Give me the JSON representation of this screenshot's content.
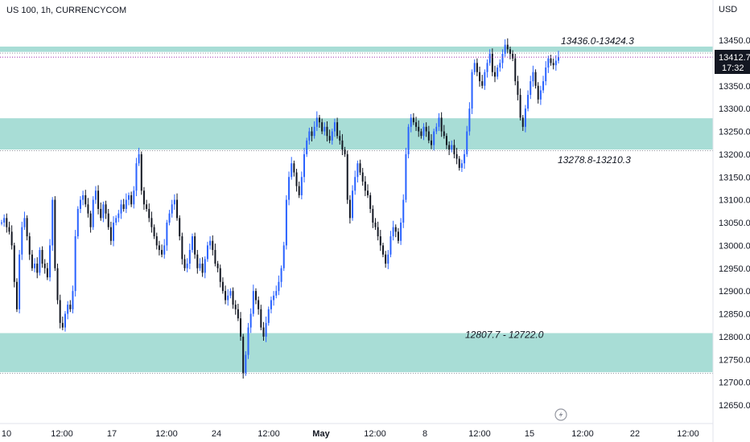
{
  "header": {
    "symbol_title": "US 100, 1h, CURRENCYCOM",
    "currency": "USD"
  },
  "price_tag": {
    "price": "13412.7",
    "countdown": "17:32"
  },
  "icons": {
    "replay": "lightning-icon"
  },
  "colors": {
    "zone_fill": "#a8ddd6",
    "candle_up": "#2962ff",
    "candle_down": "#131722",
    "price_tag_bg": "#131722",
    "dotted_line": "#9c27b0"
  },
  "chart_data": {
    "type": "candlestick",
    "title": "US 100, 1h, CURRENCYCOM",
    "y_unit": "USD",
    "ylim": [
      12620,
      13520
    ],
    "y_ticks": [
      12650,
      12700,
      12750,
      12800,
      12850,
      12900,
      12950,
      13000,
      13050,
      13100,
      13150,
      13200,
      13250,
      13300,
      13350,
      13400,
      13450
    ],
    "y_tick_labels": [
      "12650.0",
      "12700.0",
      "12750.0",
      "12800.0",
      "12850.0",
      "12900.0",
      "12950.0",
      "13000.0",
      "13050.0",
      "13100.0",
      "13150.0",
      "13200.0",
      "13250.0",
      "13300.0",
      "13350.0",
      "13400.0",
      "13450.0"
    ],
    "x_tick_labels": [
      "10",
      "12:00",
      "17",
      "12:00",
      "24",
      "12:00",
      "May",
      "12:00",
      "8",
      "12:00",
      "15",
      "12:00",
      "22",
      "12:00"
    ],
    "zones": [
      {
        "label": "13436.0-13424.3",
        "high": 13436.0,
        "low": 13424.3
      },
      {
        "label": "13278.8-13210.3",
        "high": 13278.8,
        "low": 13210.3
      },
      {
        "label": "12807.7 - 12722.0",
        "high": 12807.7,
        "low": 12722.0
      }
    ],
    "last_price": 13412.7,
    "series": [
      {
        "values": [
          13050,
          13060,
          13040,
          13030,
          13000,
          12920,
          12860,
          12980,
          13040,
          13060,
          13020,
          12980,
          12950,
          12960,
          12940,
          12990,
          12960,
          12950,
          12930,
          13000,
          13100,
          12950,
          12880,
          12830,
          12820,
          12850,
          12870,
          12860,
          12900,
          13020,
          13080,
          13100,
          13110,
          13090,
          13070,
          13040,
          13100,
          13120,
          13080,
          13060,
          13090,
          13070,
          13040,
          13010,
          13050,
          13060,
          13070,
          13090,
          13080,
          13100,
          13110,
          13090,
          13120,
          13180,
          13200,
          13120,
          13090,
          13080,
          13060,
          13040,
          13020,
          13000,
          12990,
          12980,
          13000,
          13050,
          13070,
          13090,
          13100,
          13060,
          13020,
          12970,
          12950,
          12960,
          12990,
          13020,
          12980,
          12950,
          12960,
          12940,
          12970,
          13000,
          13010,
          12990,
          12960,
          12950,
          12920,
          12900,
          12880,
          12890,
          12900,
          12870,
          12860,
          12840,
          12800,
          12720,
          12760,
          12820,
          12850,
          12900,
          12880,
          12860,
          12820,
          12800,
          12830,
          12860,
          12880,
          12890,
          12900,
          12920,
          12950,
          13000,
          13100,
          13150,
          13180,
          13160,
          13130,
          13110,
          13150,
          13200,
          13230,
          13250,
          13240,
          13260,
          13280,
          13270,
          13250,
          13260,
          13240,
          13230,
          13250,
          13270,
          13240,
          13230,
          13210,
          13200,
          13100,
          13060,
          13120,
          13150,
          13180,
          13160,
          13140,
          13120,
          13110,
          13080,
          13050,
          13040,
          13020,
          13000,
          12980,
          12960,
          12980,
          13020,
          13040,
          13030,
          13010,
          13050,
          13100,
          13200,
          13260,
          13280,
          13270,
          13260,
          13250,
          13240,
          13260,
          13250,
          13230,
          13220,
          13250,
          13260,
          13280,
          13250,
          13240,
          13220,
          13210,
          13220,
          13200,
          13190,
          13170,
          13180,
          13200,
          13250,
          13300,
          13380,
          13400,
          13380,
          13360,
          13350,
          13380,
          13400,
          13420,
          13380,
          13370,
          13390,
          13400,
          13420,
          13440,
          13430,
          13420,
          13410,
          13360,
          13330,
          13280,
          13260,
          13300,
          13330,
          13360,
          13380,
          13350,
          13320,
          13340,
          13360,
          13390,
          13410,
          13400,
          13395,
          13405,
          13412.7
        ]
      }
    ]
  }
}
